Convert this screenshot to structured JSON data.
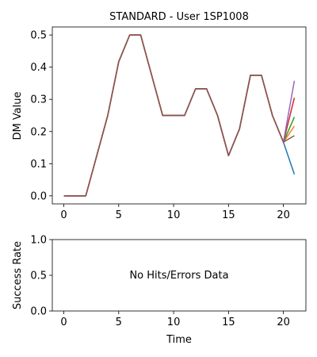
{
  "chart_data": [
    {
      "type": "line",
      "title": "STANDARD - User 1SP1008",
      "xlabel": "",
      "ylabel": "DM Value",
      "xlim": [
        -1.05,
        22.05
      ],
      "ylim": [
        -0.025,
        0.525
      ],
      "xticks": [
        0,
        5,
        10,
        15,
        20
      ],
      "xtick_labels": [
        "0",
        "5",
        "10",
        "15",
        "20"
      ],
      "yticks": [
        0.0,
        0.1,
        0.2,
        0.3,
        0.4,
        0.5
      ],
      "ytick_labels": [
        "0.0",
        "0.1",
        "0.2",
        "0.3",
        "0.4",
        "0.5"
      ],
      "grid": false,
      "legend": "none",
      "x": [
        0,
        1,
        2,
        3,
        4,
        5,
        6,
        7,
        8,
        9,
        10,
        11,
        12,
        13,
        14,
        15,
        16,
        17,
        18,
        19,
        20
      ],
      "shared_values": [
        0.0,
        0.0,
        0.0,
        0.125,
        0.25,
        0.417,
        0.5,
        0.5,
        0.375,
        0.25,
        0.25,
        0.25,
        0.333,
        0.333,
        0.25,
        0.125,
        0.208,
        0.375,
        0.375,
        0.25,
        0.167
      ],
      "series": [
        {
          "color": "#1f77b4",
          "end": 0.067
        },
        {
          "color": "#ff7f0e",
          "end": 0.217
        },
        {
          "color": "#2ca02c",
          "end": 0.245
        },
        {
          "color": "#d62728",
          "end": 0.305
        },
        {
          "color": "#9467bd",
          "end": 0.358
        },
        {
          "color": "#8c564b",
          "end": 0.187
        }
      ]
    },
    {
      "type": "line",
      "title": "",
      "xlabel": "Time",
      "ylabel": "Success Rate",
      "xlim": [
        -1.05,
        22.05
      ],
      "ylim": [
        0.0,
        1.0
      ],
      "xticks": [
        0,
        5,
        10,
        15,
        20
      ],
      "xtick_labels": [
        "0",
        "5",
        "10",
        "15",
        "20"
      ],
      "yticks": [
        0.0,
        0.5,
        1.0
      ],
      "ytick_labels": [
        "0.0",
        "0.5",
        "1.0"
      ],
      "grid": false,
      "annotation": "No Hits/Errors Data",
      "series": []
    }
  ]
}
